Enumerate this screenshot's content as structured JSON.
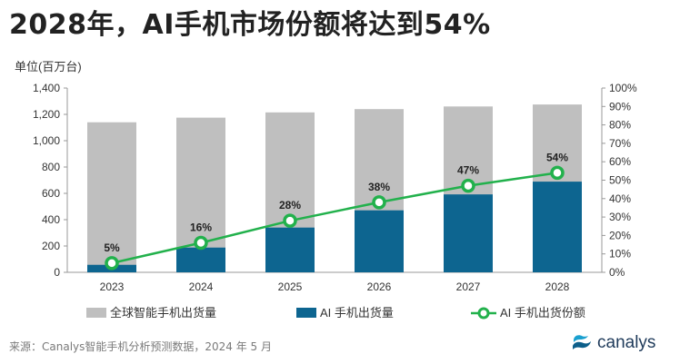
{
  "title": "2028年，AI手机市场份额将达到54%",
  "source": "来源：Canalys智能手机分析预测数据，2024 年 5 月",
  "brand": {
    "name": "canalys",
    "icon": "canalys-logo-icon"
  },
  "colors": {
    "total": "#bfbfbf",
    "ai": "#0d6590",
    "share": "#22b14c",
    "axis_text": "#333333"
  },
  "chart_data": {
    "type": "bar",
    "y_unit_label": "单位(百万台)",
    "categories": [
      "2023",
      "2024",
      "2025",
      "2026",
      "2027",
      "2028"
    ],
    "series": [
      {
        "name": "全球智能手机出货量",
        "type": "bar",
        "axis": "left",
        "values": [
          1140,
          1175,
          1215,
          1240,
          1260,
          1275
        ]
      },
      {
        "name": "AI 手机出货量",
        "type": "bar",
        "axis": "left",
        "values": [
          57,
          188,
          340,
          471,
          592,
          689
        ]
      },
      {
        "name": "AI 手机出货份额",
        "type": "line",
        "axis": "right",
        "values": [
          5,
          16,
          28,
          38,
          47,
          54
        ],
        "data_labels": [
          "5%",
          "16%",
          "28%",
          "38%",
          "47%",
          "54%"
        ]
      }
    ],
    "y_left": {
      "min": 0,
      "max": 1400,
      "ticks": [
        "0",
        "200",
        "400",
        "600",
        "800",
        "1,000",
        "1,200",
        "1,400"
      ]
    },
    "y_right": {
      "min": 0,
      "max": 100,
      "ticks": [
        "0%",
        "10%",
        "20%",
        "30%",
        "40%",
        "50%",
        "60%",
        "70%",
        "80%",
        "90%",
        "100%"
      ]
    },
    "legend_position": "bottom",
    "grid": false
  }
}
